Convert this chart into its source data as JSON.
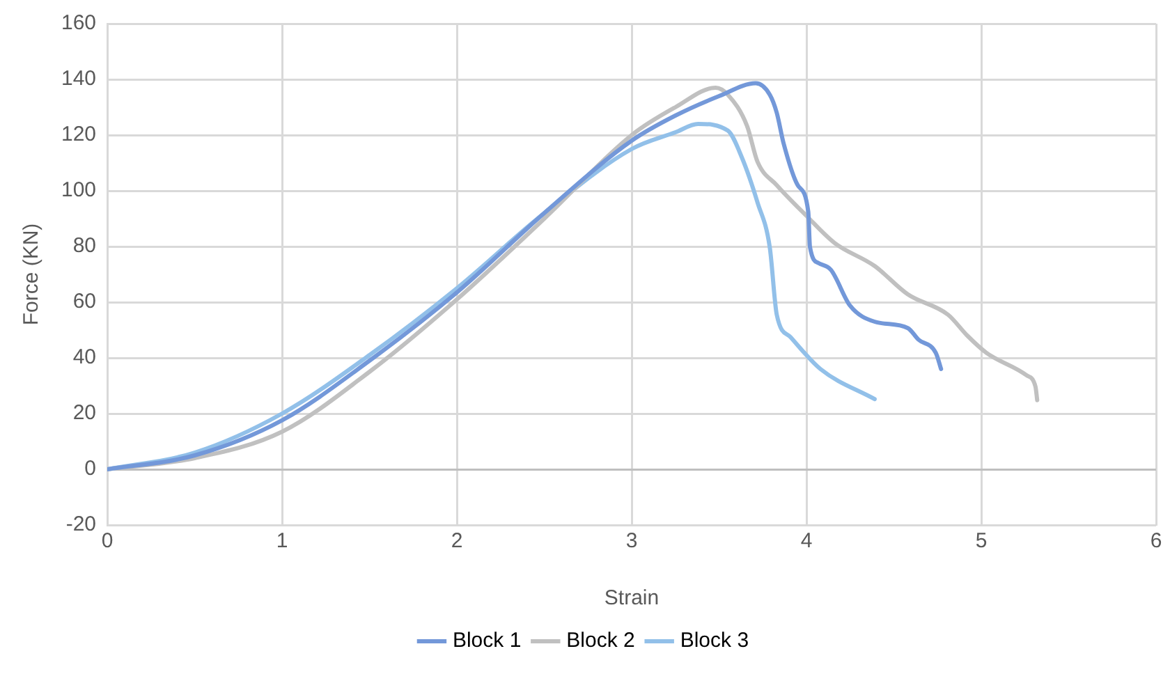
{
  "chart_data": {
    "type": "line",
    "xlabel": "Strain",
    "ylabel": "Force (KN)",
    "xlim": [
      0,
      6
    ],
    "xticks": [
      0,
      1,
      2,
      3,
      4,
      5,
      6
    ],
    "ylim": [
      -20,
      160
    ],
    "yticks": [
      -20,
      0,
      20,
      40,
      60,
      80,
      100,
      120,
      140,
      160
    ],
    "grid": true,
    "legend": "bottom",
    "marker": "none",
    "line_style": "solid",
    "series": [
      {
        "name": "Block 1",
        "color": "#7398d9",
        "x": [
          0,
          0.5,
          1,
          1.5,
          2,
          2.5,
          3,
          3.25,
          3.5,
          3.71,
          3.79,
          3.83,
          3.87,
          3.95,
          4.01,
          4.02,
          4.07,
          4.14,
          4.25,
          4.39,
          4.58,
          4.64,
          4.74,
          4.77
        ],
        "values": [
          0,
          5,
          17.6,
          39,
          63.5,
          92,
          118,
          127,
          134,
          138.6,
          134.5,
          128,
          116.8,
          102,
          92.6,
          79.8,
          74,
          71.6,
          58.7,
          53,
          50.7,
          46.6,
          41.8,
          36
        ]
      },
      {
        "name": "Block 2",
        "color": "#c0c0c0",
        "x": [
          0,
          0.5,
          1,
          1.5,
          2,
          2.5,
          3,
          3.25,
          3.48,
          3.55,
          3.66,
          3.72,
          3.83,
          4.0,
          4.16,
          4.39,
          4.58,
          4.81,
          4.92,
          5.03,
          5.26,
          5.31,
          5.32
        ],
        "values": [
          0,
          4,
          13.5,
          35,
          61,
          90,
          120,
          130,
          137,
          134.5,
          123.3,
          110.4,
          102,
          91,
          81.3,
          73,
          62.8,
          55.5,
          48,
          41.8,
          33.7,
          29.7,
          24.8
        ]
      },
      {
        "name": "Block 3",
        "color": "#92c0e9",
        "x": [
          0,
          0.5,
          1,
          1.5,
          2,
          2.5,
          3,
          3.25,
          3.38,
          3.55,
          3.63,
          3.72,
          3.79,
          3.83,
          3.91,
          4.08,
          4.39
        ],
        "values": [
          0,
          6,
          20,
          41,
          65,
          92,
          115,
          121,
          124,
          121.6,
          112,
          95.8,
          79.7,
          55.5,
          47.4,
          36,
          25.2
        ]
      }
    ]
  }
}
